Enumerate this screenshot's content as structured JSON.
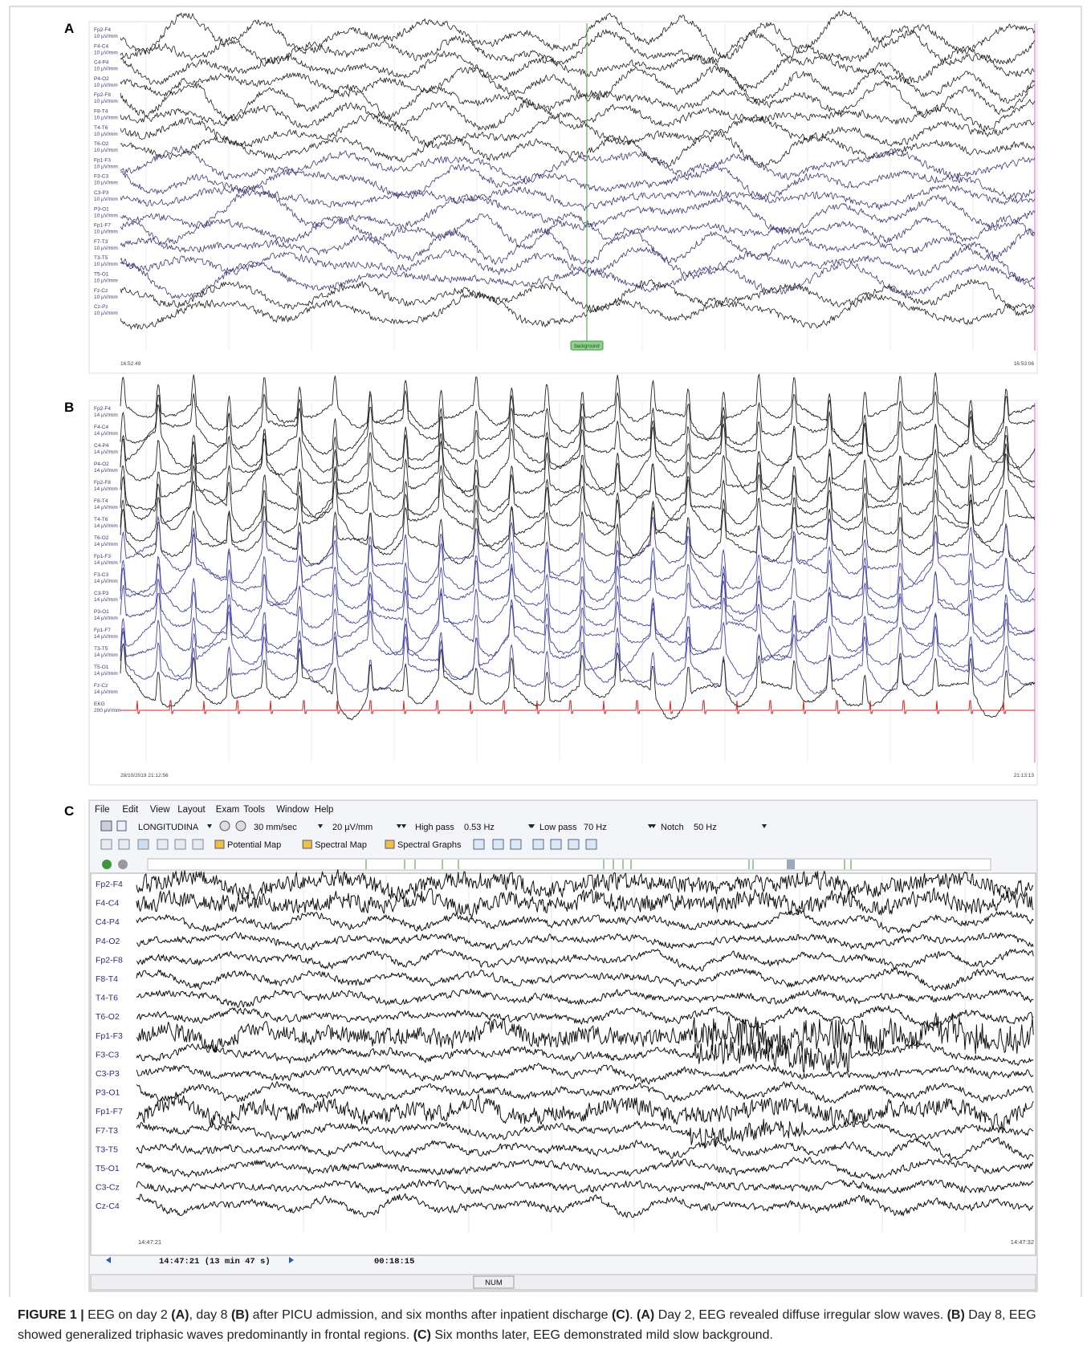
{
  "panels": [
    {
      "label": "A",
      "sensitivity": "10 µV/mm",
      "channels": [
        {
          "name": "Fp2-F4",
          "color": "#222222"
        },
        {
          "name": "F4-C4",
          "color": "#222222"
        },
        {
          "name": "C4-P4",
          "color": "#222222"
        },
        {
          "name": "P4-O2",
          "color": "#222222"
        },
        {
          "name": "Fp2-F8",
          "color": "#222222"
        },
        {
          "name": "F8-T4",
          "color": "#222222"
        },
        {
          "name": "T4-T6",
          "color": "#222222"
        },
        {
          "name": "T6-O2",
          "color": "#222222"
        },
        {
          "name": "Fp1-F3",
          "color": "#3f3a78"
        },
        {
          "name": "F3-C3",
          "color": "#3f3a78"
        },
        {
          "name": "C3-P3",
          "color": "#3f3a78"
        },
        {
          "name": "P3-O1",
          "color": "#3f3a78"
        },
        {
          "name": "Fp1-F7",
          "color": "#3f3a78"
        },
        {
          "name": "F7-T3",
          "color": "#3f3a78"
        },
        {
          "name": "T3-T5",
          "color": "#3f3a78"
        },
        {
          "name": "T5-O1",
          "color": "#3f3a78"
        },
        {
          "name": "Fz-Cz",
          "color": "#222222"
        },
        {
          "name": "Cz-Pz",
          "color": "#222222"
        }
      ],
      "start_time": "16:52:49",
      "end_time": "16:53:06",
      "annotation": "background"
    },
    {
      "label": "B",
      "sensitivity": "14 µV/mm",
      "channels": [
        {
          "name": "Fp2-F4",
          "color": "#222222"
        },
        {
          "name": "F4-C4",
          "color": "#222222"
        },
        {
          "name": "C4-P4",
          "color": "#222222"
        },
        {
          "name": "P4-O2",
          "color": "#222222"
        },
        {
          "name": "Fp2-F8",
          "color": "#222222"
        },
        {
          "name": "F8-T4",
          "color": "#222222"
        },
        {
          "name": "T4-T6",
          "color": "#222222"
        },
        {
          "name": "T6-O2",
          "color": "#222222"
        },
        {
          "name": "Fp1-F3",
          "color": "#4545a0"
        },
        {
          "name": "F3-C3",
          "color": "#4545a0"
        },
        {
          "name": "C3-P3",
          "color": "#4545a0"
        },
        {
          "name": "P3-O1",
          "color": "#4545a0"
        },
        {
          "name": "Fp1-F7",
          "color": "#4545a0"
        },
        {
          "name": "T3-T5",
          "color": "#4545a0"
        },
        {
          "name": "T5-O1",
          "color": "#4545a0"
        },
        {
          "name": "Fz-Cz",
          "color": "#222222"
        }
      ],
      "ekg": {
        "name": "EKG",
        "sensitivity": "200 µV/mm",
        "color": "#e02020"
      },
      "start_time": "28/10/2019 21:12:56",
      "end_time": "21:13:13"
    },
    {
      "label": "C",
      "menu": [
        "File",
        "Edit",
        "View",
        "Layout",
        "Exam",
        "Tools",
        "Window",
        "Help"
      ],
      "montage": "LONGITUDINA",
      "speed": "30 mm/sec",
      "sensitivity": "20 µV/mm",
      "high_pass_label": "High pass",
      "high_pass": "0.53 Hz",
      "low_pass_label": "Low pass",
      "low_pass": "70 Hz",
      "notch_label": "Notch",
      "notch": "50 Hz",
      "buttons": [
        "Potential Map",
        "Spectral Map",
        "Spectral Graphs"
      ],
      "channels": [
        {
          "name": "Fp2-F4"
        },
        {
          "name": "F4-C4"
        },
        {
          "name": "C4-P4"
        },
        {
          "name": "P4-O2"
        },
        {
          "name": "Fp2-F8"
        },
        {
          "name": "F8-T4"
        },
        {
          "name": "T4-T6"
        },
        {
          "name": "T6-O2"
        },
        {
          "name": "Fp1-F3"
        },
        {
          "name": "F3-C3"
        },
        {
          "name": "C3-P3"
        },
        {
          "name": "P3-O1"
        },
        {
          "name": "Fp1-F7"
        },
        {
          "name": "F7-T3"
        },
        {
          "name": "T3-T5"
        },
        {
          "name": "T5-O1"
        },
        {
          "name": "C3-Cz"
        },
        {
          "name": "Cz-C4"
        }
      ],
      "start_time": "14:47:21",
      "end_time": "14:47:32",
      "position_time": "14:47:21 (13 min 47 s)",
      "duration": "00:18:15",
      "status": "NUM"
    }
  ],
  "caption": [
    {
      "text": "FIGURE 1 |",
      "bold": true
    },
    {
      "text": " EEG on day 2 ",
      "bold": false
    },
    {
      "text": "(A)",
      "bold": true
    },
    {
      "text": ", day 8 ",
      "bold": false
    },
    {
      "text": "(B)",
      "bold": true
    },
    {
      "text": " after PICU admission, and six months after inpatient discharge ",
      "bold": false
    },
    {
      "text": "(C)",
      "bold": true
    },
    {
      "text": ". ",
      "bold": false
    },
    {
      "text": "(A)",
      "bold": true
    },
    {
      "text": " Day 2, EEG revealed diffuse irregular slow waves. ",
      "bold": false
    },
    {
      "text": "(B)",
      "bold": true
    },
    {
      "text": " Day 8, EEG showed generalized triphasic waves predominantly in frontal regions. ",
      "bold": false
    },
    {
      "text": "(C)",
      "bold": true
    },
    {
      "text": " Six months later, EEG demonstrated mild slow background.",
      "bold": false
    }
  ]
}
